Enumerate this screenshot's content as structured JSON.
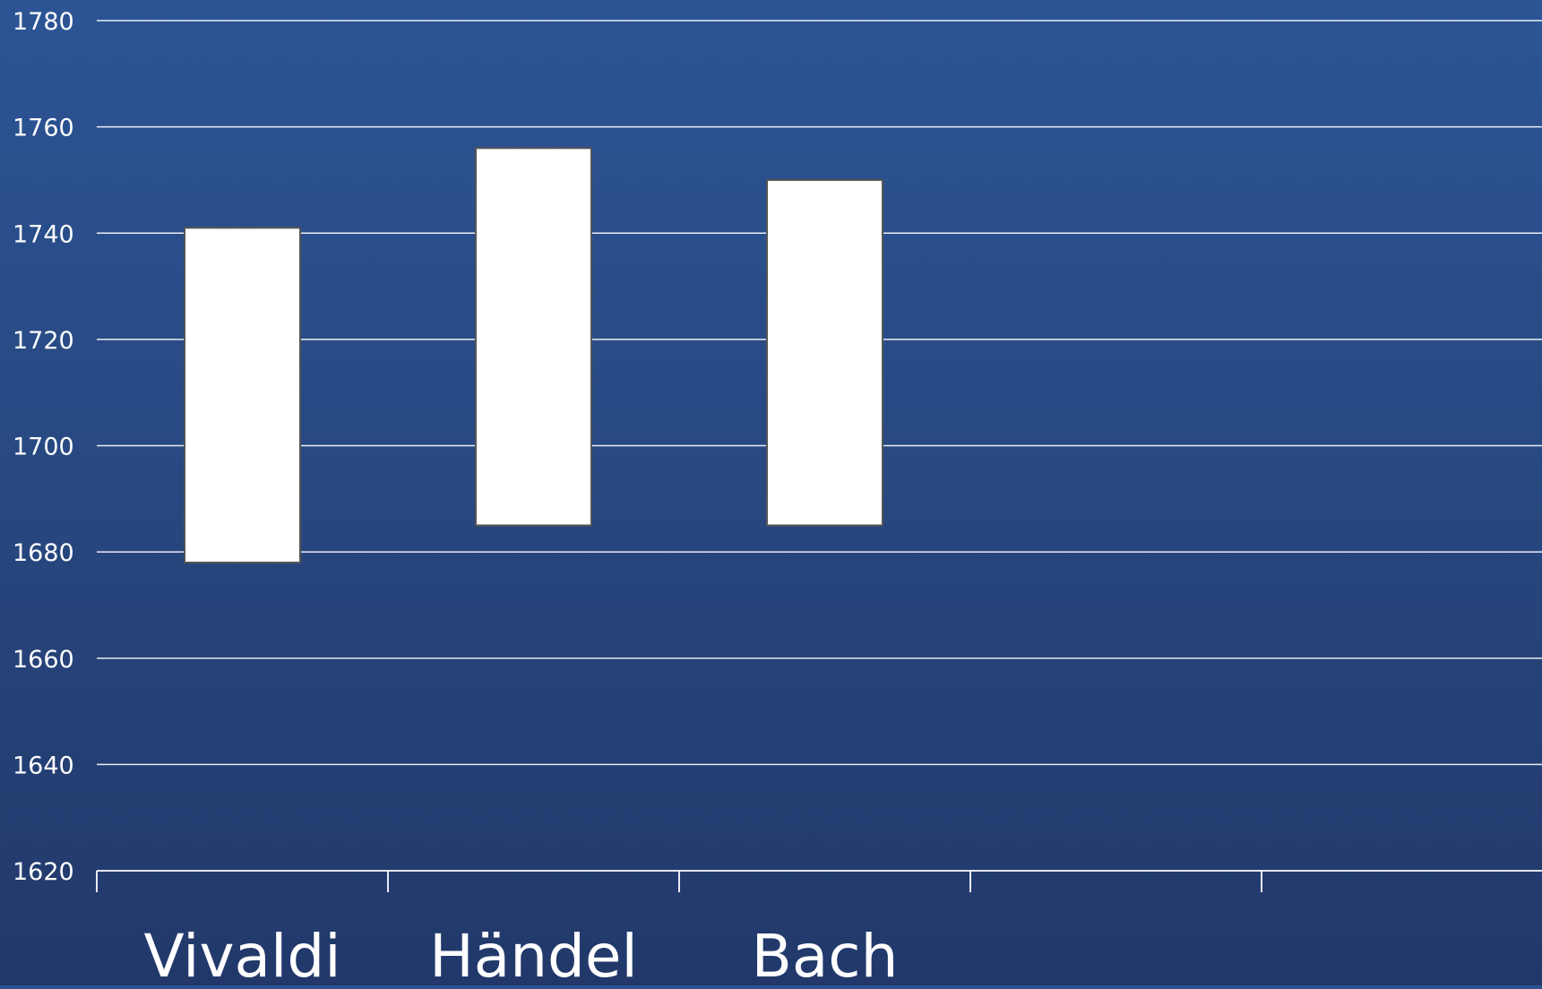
{
  "chart_data": {
    "type": "bar",
    "subtype": "floating",
    "title": "",
    "xlabel": "",
    "ylabel": "",
    "categories": [
      "Vivaldi",
      "Händel",
      "Bach",
      "",
      ""
    ],
    "series": [
      {
        "values": [
          {
            "low": 1678,
            "high": 1741
          },
          {
            "low": 1685,
            "high": 1756
          },
          {
            "low": 1685,
            "high": 1750
          },
          null,
          null
        ]
      }
    ],
    "ylim": [
      1620,
      1780
    ],
    "yticks": [
      1620,
      1640,
      1660,
      1680,
      1700,
      1720,
      1740,
      1760,
      1780
    ],
    "grid": true,
    "legend": "none",
    "colors": {
      "bar_fill": "#ffffff",
      "bar_stroke": "#555555",
      "grid": "#ffffff",
      "text": "#ffffff",
      "background_top": "#2c5495",
      "background_bottom": "#22386a"
    }
  }
}
